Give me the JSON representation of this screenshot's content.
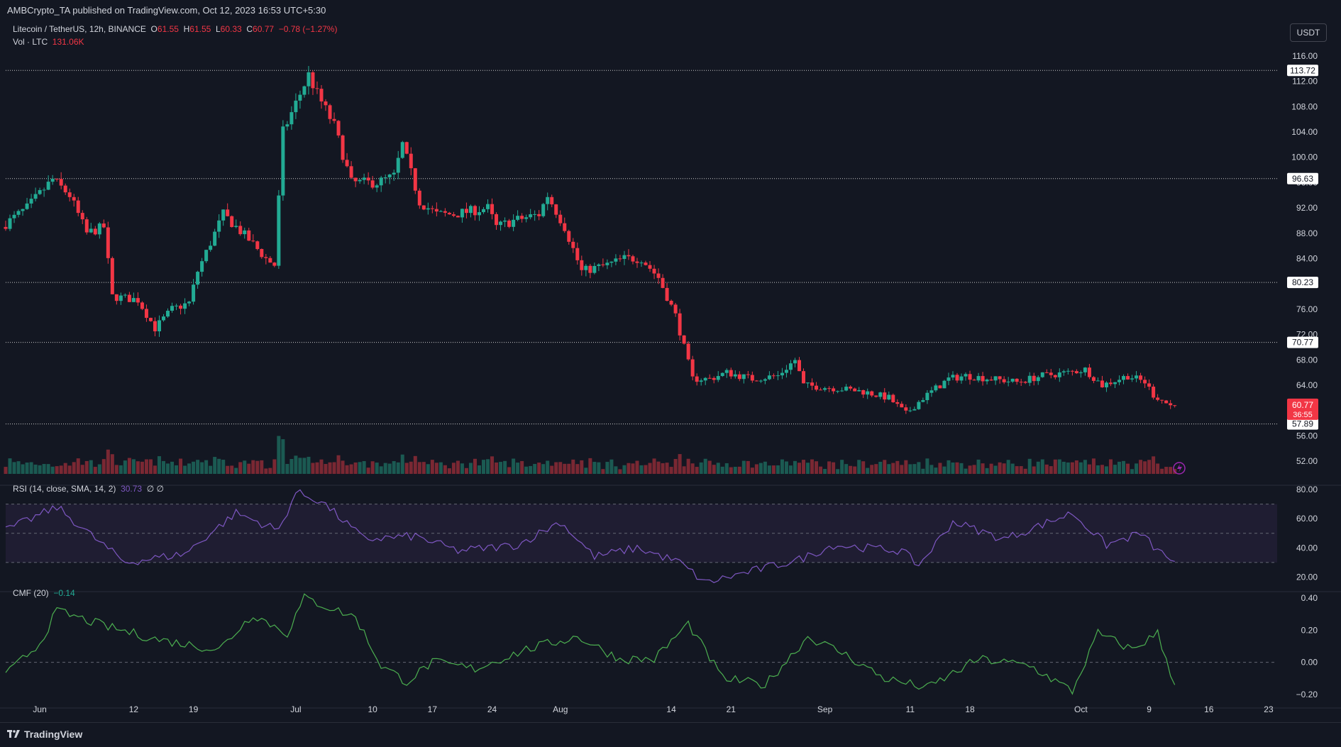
{
  "header": {
    "publisher": "AMBCrypto_TA published on TradingView.com, Oct 12, 2023 16:53 UTC+5:30"
  },
  "currency_button": "USDT",
  "legend": {
    "symbol": "Litecoin / TetherUS, 12h, BINANCE",
    "o_label": "O",
    "o_value": "61.55",
    "h_label": "H",
    "h_value": "61.55",
    "l_label": "L",
    "l_value": "60.33",
    "c_label": "C",
    "c_value": "60.77",
    "change": "−0.78 (−1.27%)",
    "vol_label": "Vol · LTC",
    "vol_value": "131.06K",
    "rsi_label": "RSI (14, close, SMA, 14, 2)",
    "rsi_value": "30.73",
    "rsi_extra": "∅ ∅",
    "cmf_label": "CMF (20)",
    "cmf_value": "−0.14"
  },
  "colors": {
    "background": "#131722",
    "up": "#22ab94",
    "down": "#f23645",
    "rsi_line": "#7e57c2",
    "rsi_band": "#2a2340",
    "cmf_line": "#4caf50",
    "level_line": "#c9c9c9",
    "grid": "#1e222d"
  },
  "chart_data": [
    {
      "type": "candlestick",
      "title": "Litecoin / TetherUS, 12h, BINANCE",
      "ylim": [
        50,
        117
      ],
      "y_ticks": [
        "116.00",
        "112.00",
        "108.00",
        "104.00",
        "100.00",
        "96.00",
        "92.00",
        "88.00",
        "84.00",
        "80.00",
        "76.00",
        "72.00",
        "68.00",
        "64.00",
        "60.00",
        "56.00",
        "52.00"
      ],
      "x_tick_labels": [
        "Jun",
        "12",
        "19",
        "Jul",
        "10",
        "17",
        "24",
        "Aug",
        "14",
        "21",
        "Sep",
        "11",
        "18",
        "Oct",
        "9",
        "16",
        "23"
      ],
      "x_tick_dates": [
        "2023-06-01",
        "2023-06-12",
        "2023-06-19",
        "2023-07-01",
        "2023-07-10",
        "2023-07-17",
        "2023-07-24",
        "2023-08-01",
        "2023-08-14",
        "2023-08-21",
        "2023-09-01",
        "2023-09-11",
        "2023-09-18",
        "2023-10-01",
        "2023-10-09",
        "2023-10-16",
        "2023-10-23"
      ],
      "x_range": [
        "2023-05-28",
        "2023-10-24"
      ],
      "levels": [
        {
          "label": "113.72",
          "value": 113.72
        },
        {
          "label": "96.63",
          "value": 96.63
        },
        {
          "label": "80.23",
          "value": 80.23
        },
        {
          "label": "70.77",
          "value": 70.77
        },
        {
          "label": "57.89",
          "value": 57.89
        }
      ],
      "current_price": {
        "label": "60.77",
        "value": 60.77,
        "countdown": "36:55"
      },
      "price_path": [
        [
          "2023-05-28",
          89
        ],
        [
          "2023-05-31",
          92
        ],
        [
          "2023-06-03",
          96.5
        ],
        [
          "2023-06-05",
          94
        ],
        [
          "2023-06-07",
          88
        ],
        [
          "2023-06-09",
          89
        ],
        [
          "2023-06-10",
          78
        ],
        [
          "2023-06-13",
          77.5
        ],
        [
          "2023-06-15",
          73
        ],
        [
          "2023-06-17",
          76
        ],
        [
          "2023-06-19",
          77
        ],
        [
          "2023-06-20",
          82
        ],
        [
          "2023-06-23",
          91
        ],
        [
          "2023-06-26",
          87
        ],
        [
          "2023-06-28",
          84
        ],
        [
          "2023-06-29",
          83
        ],
        [
          "2023-06-30",
          104
        ],
        [
          "2023-07-01",
          107
        ],
        [
          "2023-07-03",
          113
        ],
        [
          "2023-07-04",
          110
        ],
        [
          "2023-07-06",
          105
        ],
        [
          "2023-07-08",
          96
        ],
        [
          "2023-07-11",
          96
        ],
        [
          "2023-07-13",
          97
        ],
        [
          "2023-07-14",
          102
        ],
        [
          "2023-07-16",
          93
        ],
        [
          "2023-07-18",
          91
        ],
        [
          "2023-07-20",
          91
        ],
        [
          "2023-07-24",
          92
        ],
        [
          "2023-07-25",
          89
        ],
        [
          "2023-07-27",
          90
        ],
        [
          "2023-07-30",
          91
        ],
        [
          "2023-07-31",
          94
        ],
        [
          "2023-08-02",
          89
        ],
        [
          "2023-08-04",
          82
        ],
        [
          "2023-08-07",
          83
        ],
        [
          "2023-08-09",
          84
        ],
        [
          "2023-08-11",
          84
        ],
        [
          "2023-08-13",
          81
        ],
        [
          "2023-08-15",
          75
        ],
        [
          "2023-08-17",
          65
        ],
        [
          "2023-08-19",
          65
        ],
        [
          "2023-08-21",
          66
        ],
        [
          "2023-08-24",
          65
        ],
        [
          "2023-08-27",
          65.5
        ],
        [
          "2023-08-29",
          68
        ],
        [
          "2023-08-30",
          64
        ],
        [
          "2023-09-03",
          63.5
        ],
        [
          "2023-09-06",
          63
        ],
        [
          "2023-09-09",
          62
        ],
        [
          "2023-09-11",
          59.5
        ],
        [
          "2023-09-13",
          62
        ],
        [
          "2023-09-16",
          65
        ],
        [
          "2023-09-18",
          65.5
        ],
        [
          "2023-09-21",
          65
        ],
        [
          "2023-09-24",
          64.5
        ],
        [
          "2023-09-27",
          65.5
        ],
        [
          "2023-09-30",
          66
        ],
        [
          "2023-10-02",
          66.5
        ],
        [
          "2023-10-04",
          64
        ],
        [
          "2023-10-07",
          65.5
        ],
        [
          "2023-10-09",
          64.5
        ],
        [
          "2023-10-10",
          62.5
        ],
        [
          "2023-10-12",
          60.77
        ]
      ],
      "volume": {
        "label": "Vol · LTC",
        "last": "131.06K"
      }
    },
    {
      "type": "line",
      "title": "RSI (14, close, SMA, 14, 2)",
      "ylim": [
        10,
        82
      ],
      "y_ticks": [
        "80.00",
        "60.00",
        "40.00",
        "20.00"
      ],
      "band": [
        30,
        70
      ],
      "last": 30.73,
      "series": [
        {
          "name": "RSI",
          "x": [
            "2023-05-28",
            "2023-06-03",
            "2023-06-08",
            "2023-06-11",
            "2023-06-18",
            "2023-06-24",
            "2023-06-29",
            "2023-07-01",
            "2023-07-04",
            "2023-07-09",
            "2023-07-15",
            "2023-07-20",
            "2023-07-27",
            "2023-08-01",
            "2023-08-05",
            "2023-08-10",
            "2023-08-15",
            "2023-08-18",
            "2023-08-22",
            "2023-08-29",
            "2023-09-02",
            "2023-09-10",
            "2023-09-12",
            "2023-09-16",
            "2023-09-22",
            "2023-09-30",
            "2023-10-04",
            "2023-10-08",
            "2023-10-10",
            "2023-10-12"
          ],
          "values": [
            52,
            68,
            44,
            30,
            36,
            64,
            52,
            78,
            72,
            46,
            48,
            38,
            42,
            58,
            34,
            40,
            30,
            16,
            22,
            32,
            42,
            38,
            28,
            58,
            46,
            64,
            42,
            50,
            38,
            30.73
          ]
        }
      ]
    },
    {
      "type": "line",
      "title": "CMF (20)",
      "ylim": [
        -0.24,
        0.44
      ],
      "y_ticks": [
        "0.40",
        "0.20",
        "0.00",
        "−0.20"
      ],
      "last": -0.14,
      "series": [
        {
          "name": "CMF",
          "x": [
            "2023-05-28",
            "2023-06-01",
            "2023-06-03",
            "2023-06-09",
            "2023-06-15",
            "2023-06-22",
            "2023-06-26",
            "2023-06-30",
            "2023-07-02",
            "2023-07-08",
            "2023-07-11",
            "2023-07-14",
            "2023-07-17",
            "2023-07-22",
            "2023-07-28",
            "2023-08-03",
            "2023-08-08",
            "2023-08-12",
            "2023-08-16",
            "2023-08-20",
            "2023-08-25",
            "2023-08-30",
            "2023-09-03",
            "2023-09-08",
            "2023-09-13",
            "2023-09-19",
            "2023-09-25",
            "2023-09-30",
            "2023-10-03",
            "2023-10-07",
            "2023-10-10",
            "2023-10-12"
          ],
          "values": [
            -0.08,
            0.12,
            0.32,
            0.22,
            0.14,
            0.08,
            0.3,
            0.18,
            0.4,
            0.28,
            -0.02,
            -0.12,
            0.0,
            -0.04,
            0.08,
            0.16,
            0.02,
            0.02,
            0.24,
            -0.1,
            -0.14,
            0.16,
            0.06,
            -0.1,
            -0.16,
            0.02,
            -0.02,
            -0.18,
            0.18,
            0.08,
            0.18,
            -0.14
          ]
        }
      ]
    }
  ]
}
